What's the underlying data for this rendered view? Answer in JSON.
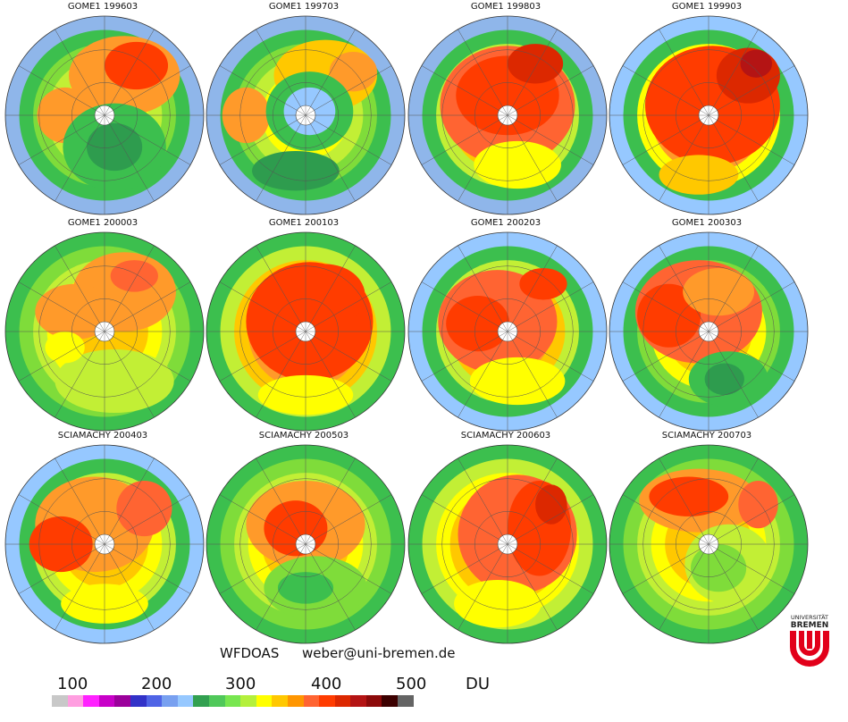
{
  "panels": [
    {
      "title": "GOME1 199603",
      "variant": 0
    },
    {
      "title": "GOME1 199703",
      "variant": 1
    },
    {
      "title": "GOME1 199803",
      "variant": 2
    },
    {
      "title": "GOME1 199903",
      "variant": 3
    },
    {
      "title": "GOME1 200003",
      "variant": 4
    },
    {
      "title": "GOME1 200103",
      "variant": 5
    },
    {
      "title": "GOME1 200203",
      "variant": 6
    },
    {
      "title": "GOME1 200303",
      "variant": 7
    },
    {
      "title": "SCIAMACHY 200403",
      "variant": 8
    },
    {
      "title": "SCIAMACHY 200503",
      "variant": 9
    },
    {
      "title": "SCIAMACHY 200603",
      "variant": 10
    },
    {
      "title": "SCIAMACHY 200703",
      "variant": 11
    }
  ],
  "footer": {
    "method": "WFDOAS",
    "contact": "weber@uni-bremen.de"
  },
  "colorbar": {
    "labels": [
      "100",
      "200",
      "300",
      "400",
      "500",
      "DU"
    ],
    "colors": [
      "#c8c8c8",
      "#ff9ee0",
      "#ff22ff",
      "#c800c8",
      "#9b009b",
      "#3232c8",
      "#4f64e6",
      "#78a0f0",
      "#96c8ff",
      "#32a050",
      "#50c85a",
      "#78e650",
      "#b4f03c",
      "#ffff00",
      "#ffc800",
      "#ff9600",
      "#ff6432",
      "#ff3c00",
      "#dc2800",
      "#b41414",
      "#8c0a0a",
      "#3c0000",
      "#646464"
    ]
  },
  "logo": {
    "line1": "UNIVERSITÄT",
    "line2": "BREMEN"
  }
}
